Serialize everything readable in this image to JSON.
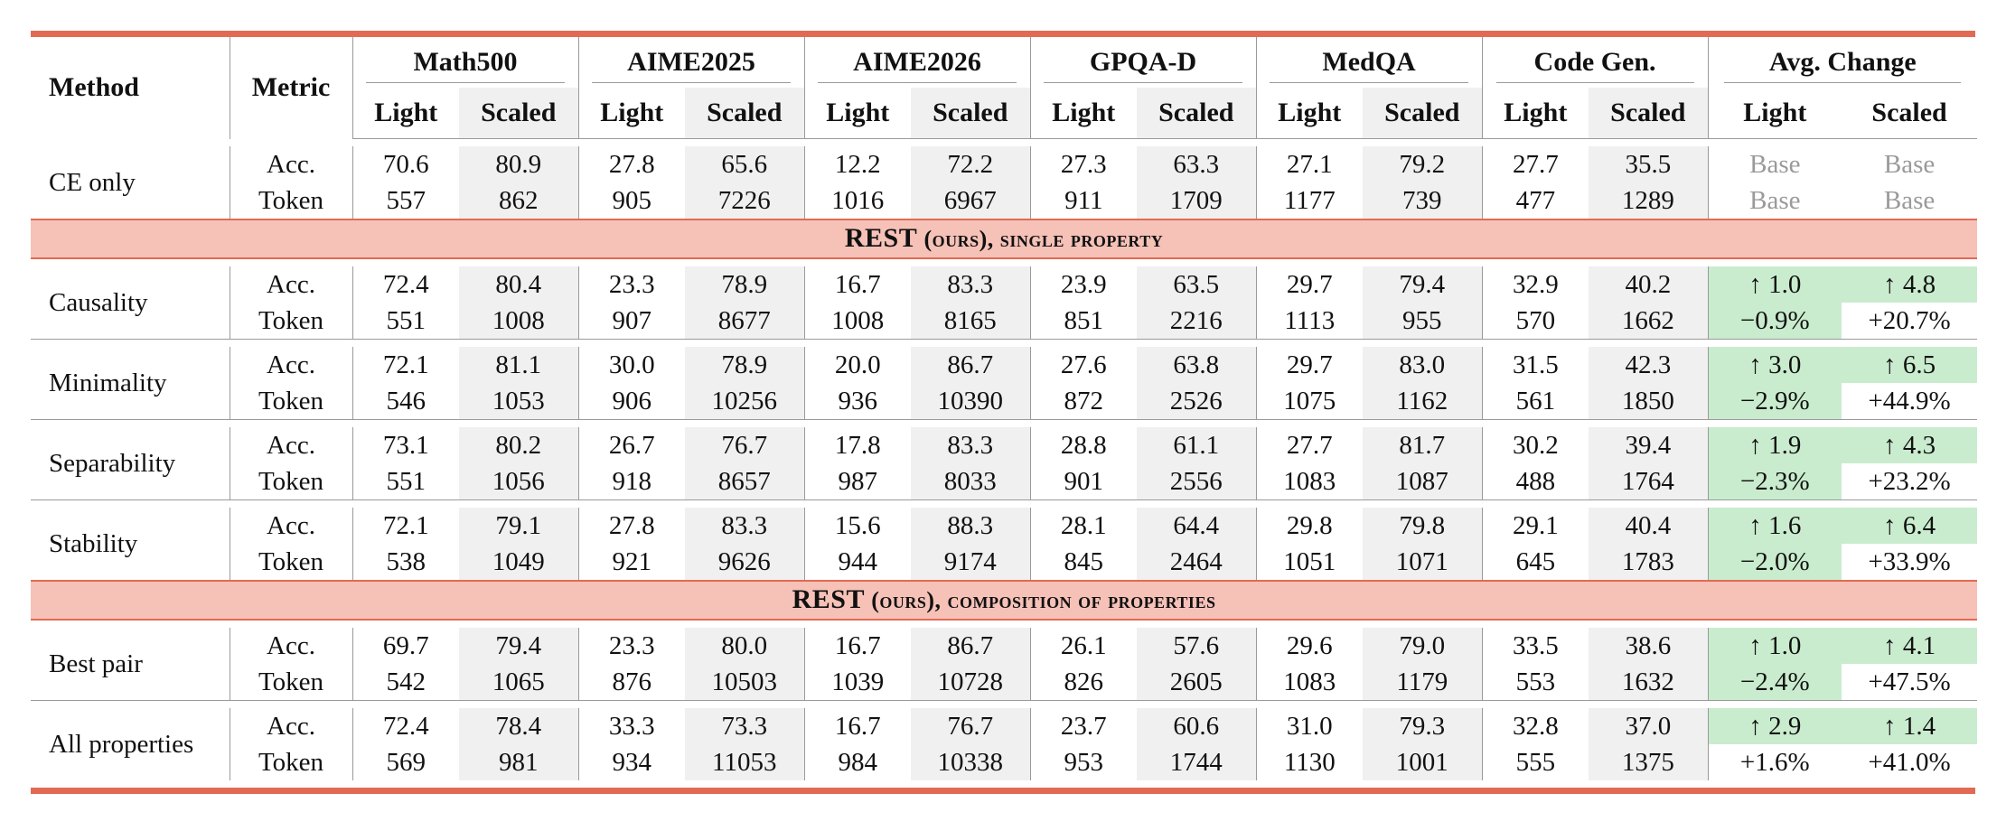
{
  "header": {
    "method": "Method",
    "metric": "Metric",
    "groups": [
      "Math500",
      "AIME2025",
      "AIME2026",
      "GPQA-D",
      "MedQA",
      "Code Gen.",
      "Avg. Change"
    ],
    "sub": [
      "Light",
      "Scaled"
    ]
  },
  "rows": [
    {
      "method": "CE only",
      "acc_label": "Acc.",
      "tok_label": "Token",
      "acc": [
        "70.6",
        "80.9",
        "27.8",
        "65.6",
        "12.2",
        "72.2",
        "27.3",
        "63.3",
        "27.1",
        "79.2",
        "27.7",
        "35.5"
      ],
      "tok": [
        "557",
        "862",
        "905",
        "7226",
        "1016",
        "6967",
        "911",
        "1709",
        "1177",
        "739",
        "477",
        "1289"
      ],
      "avg_acc": [
        "Base",
        "Base"
      ],
      "avg_tok": [
        "Base",
        "Base"
      ]
    },
    {
      "method": "Causality",
      "acc_label": "Acc.",
      "tok_label": "Token",
      "acc": [
        "72.4",
        "80.4",
        "23.3",
        "78.9",
        "16.7",
        "83.3",
        "23.9",
        "63.5",
        "29.7",
        "79.4",
        "32.9",
        "40.2"
      ],
      "tok": [
        "551",
        "1008",
        "907",
        "8677",
        "1008",
        "8165",
        "851",
        "2216",
        "1113",
        "955",
        "570",
        "1662"
      ],
      "avg_acc": [
        "↑ 1.0",
        "↑ 4.8"
      ],
      "avg_tok": [
        "−0.9%",
        "+20.7%"
      ]
    },
    {
      "method": "Minimality",
      "acc_label": "Acc.",
      "tok_label": "Token",
      "acc": [
        "72.1",
        "81.1",
        "30.0",
        "78.9",
        "20.0",
        "86.7",
        "27.6",
        "63.8",
        "29.7",
        "83.0",
        "31.5",
        "42.3"
      ],
      "tok": [
        "546",
        "1053",
        "906",
        "10256",
        "936",
        "10390",
        "872",
        "2526",
        "1075",
        "1162",
        "561",
        "1850"
      ],
      "avg_acc": [
        "↑ 3.0",
        "↑ 6.5"
      ],
      "avg_tok": [
        "−2.9%",
        "+44.9%"
      ]
    },
    {
      "method": "Separability",
      "acc_label": "Acc.",
      "tok_label": "Token",
      "acc": [
        "73.1",
        "80.2",
        "26.7",
        "76.7",
        "17.8",
        "83.3",
        "28.8",
        "61.1",
        "27.7",
        "81.7",
        "30.2",
        "39.4"
      ],
      "tok": [
        "551",
        "1056",
        "918",
        "8657",
        "987",
        "8033",
        "901",
        "2556",
        "1083",
        "1087",
        "488",
        "1764"
      ],
      "avg_acc": [
        "↑ 1.9",
        "↑ 4.3"
      ],
      "avg_tok": [
        "−2.3%",
        "+23.2%"
      ]
    },
    {
      "method": "Stability",
      "acc_label": "Acc.",
      "tok_label": "Token",
      "acc": [
        "72.1",
        "79.1",
        "27.8",
        "83.3",
        "15.6",
        "88.3",
        "28.1",
        "64.4",
        "29.8",
        "79.8",
        "29.1",
        "40.4"
      ],
      "tok": [
        "538",
        "1049",
        "921",
        "9626",
        "944",
        "9174",
        "845",
        "2464",
        "1051",
        "1071",
        "645",
        "1783"
      ],
      "avg_acc": [
        "↑ 1.6",
        "↑ 6.4"
      ],
      "avg_tok": [
        "−2.0%",
        "+33.9%"
      ]
    },
    {
      "method": "Best pair",
      "acc_label": "Acc.",
      "tok_label": "Token",
      "acc": [
        "69.7",
        "79.4",
        "23.3",
        "80.0",
        "16.7",
        "86.7",
        "26.1",
        "57.6",
        "29.6",
        "79.0",
        "33.5",
        "38.6"
      ],
      "tok": [
        "542",
        "1065",
        "876",
        "10503",
        "1039",
        "10728",
        "826",
        "2605",
        "1083",
        "1179",
        "553",
        "1632"
      ],
      "avg_acc": [
        "↑ 1.0",
        "↑ 4.1"
      ],
      "avg_tok": [
        "−2.4%",
        "+47.5%"
      ]
    },
    {
      "method": "All properties",
      "acc_label": "Acc.",
      "tok_label": "Token",
      "acc": [
        "72.4",
        "78.4",
        "33.3",
        "73.3",
        "16.7",
        "76.7",
        "23.7",
        "60.6",
        "31.0",
        "79.3",
        "32.8",
        "37.0"
      ],
      "tok": [
        "569",
        "981",
        "934",
        "11053",
        "984",
        "10338",
        "953",
        "1744",
        "1130",
        "1001",
        "555",
        "1375"
      ],
      "avg_acc": [
        "↑ 2.9",
        "↑ 1.4"
      ],
      "avg_tok": [
        "+1.6%",
        "+41.0%"
      ]
    }
  ],
  "sections": [
    {
      "name": "REST",
      "suffix": "(ours), single property"
    },
    {
      "name": "REST",
      "suffix": "(ours), composition of properties"
    }
  ],
  "colors": {
    "accent_rule": "#e26a54",
    "section_fill": "#f6c1b7",
    "improve_fill": "#c9ecce",
    "shade_fill": "#f0f0f0",
    "base_text": "#9a9a9a"
  }
}
